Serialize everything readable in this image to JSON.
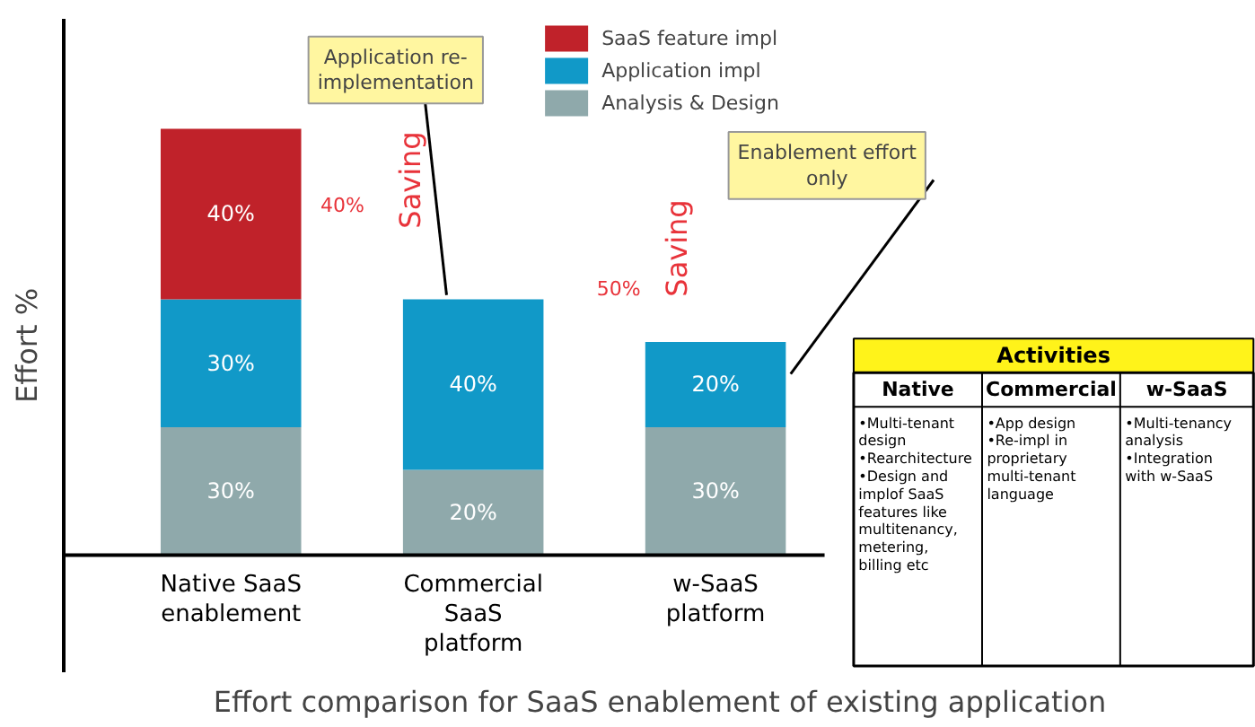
{
  "chart_data": {
    "type": "bar",
    "stacked": true,
    "xlabel": "Effort comparison for SaaS enablement of existing application",
    "ylabel": "Effort %",
    "categories": [
      "Native SaaS\nenablement",
      "Commercial\nSaaS\nplatform",
      "w-SaaS\nplatform"
    ],
    "series": [
      {
        "name": "Analysis & Design",
        "color": "#8fa9ab",
        "values": [
          30,
          20,
          30
        ],
        "value_labels": [
          "30%",
          "20%",
          "30%"
        ]
      },
      {
        "name": "Application impl",
        "color": "#1199c8",
        "values": [
          30,
          40,
          20
        ],
        "value_labels": [
          "30%",
          "40%",
          "20%"
        ]
      },
      {
        "name": "SaaS feature impl",
        "color": "#c0222a",
        "values": [
          40,
          null,
          null
        ],
        "value_labels": [
          "40%",
          null,
          null
        ]
      }
    ],
    "legend": "top",
    "annotations": [
      "Application re-\nimplementation",
      "Enablement effort\nonly",
      "Saving",
      "40%",
      "Saving",
      "50%",
      "Activities",
      "Native",
      "Commercial",
      "w-SaaS",
      "•Multi-tenant\ndesign\n•Rearchitecture\n•Design and\nimplof SaaS\nfeatures like\nmultitenancy,\nmetering,\nbilling etc",
      "•App design\n•Re-impl in\nproprietary\nmulti-tenant\nlanguage",
      "•Multi-tenancy\nanalysis\n•Integration\nwith w-SaaS"
    ]
  }
}
